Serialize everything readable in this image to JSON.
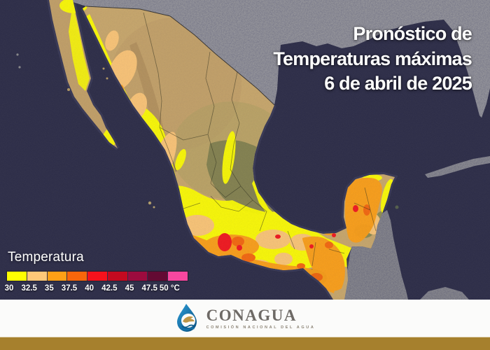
{
  "title": {
    "line1": "Pronóstico de",
    "line2": "Temperaturas máximas",
    "line3": "6 de abril de 2025"
  },
  "legend": {
    "title": "Temperatura",
    "ticks": [
      "30",
      "32.5",
      "35",
      "37.5",
      "40",
      "42.5",
      "45",
      "47.5",
      "50 °C"
    ],
    "colors": [
      "#FEFE02",
      "#FEC878",
      "#FEA016",
      "#F8660B",
      "#F5121C",
      "#C40A20",
      "#9C0B3E",
      "#630A33",
      "#F7479F"
    ]
  },
  "map": {
    "ocean_color": "#2E2E47",
    "us_land_color": "#9B9B9B",
    "terrain_base_color": "#C9A86B",
    "gold_bar_color": "#A6802D"
  },
  "footer": {
    "logo_text": "CONAGUA",
    "logo_subtext": "COMISIÓN NACIONAL DEL AGUA"
  }
}
